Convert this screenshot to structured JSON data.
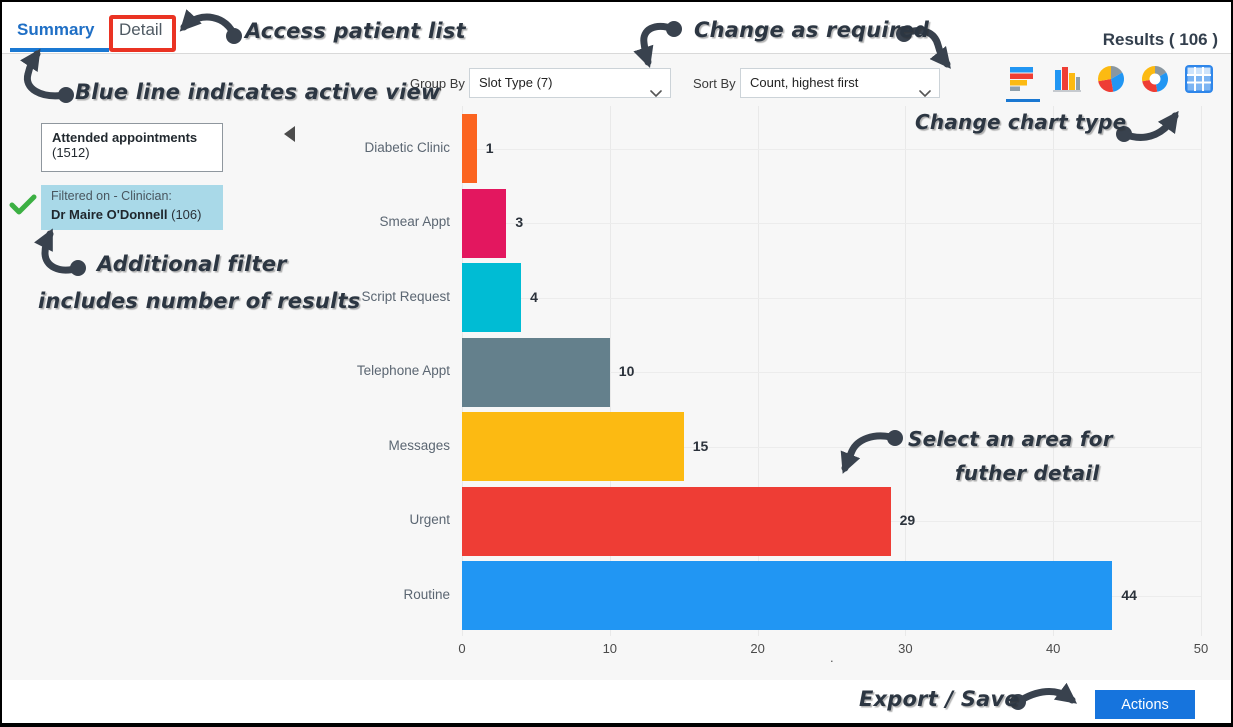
{
  "header": {
    "tabs": [
      {
        "label": "Summary",
        "active": true
      },
      {
        "label": "Detail",
        "active": false
      }
    ],
    "results_label": "Results ( 106 )"
  },
  "controls": {
    "group_by_label": "Group By",
    "group_by_value": "Slot Type (7)",
    "sort_by_label": "Sort By",
    "sort_by_value": "Count, highest first",
    "chart_type_icons": [
      {
        "name": "horizontal-bar-chart-icon",
        "selected": true
      },
      {
        "name": "column-chart-icon",
        "selected": false
      },
      {
        "name": "pie-chart-icon",
        "selected": false
      },
      {
        "name": "donut-chart-icon",
        "selected": false
      },
      {
        "name": "table-icon",
        "selected": false
      }
    ]
  },
  "filter_panel": {
    "base": {
      "title": "Attended appointments",
      "count": "(1512)"
    },
    "filter": {
      "line1": "Filtered on - Clinician:",
      "name": "Dr Maire O'Donnell",
      "count": " (106)"
    },
    "icons": [
      "check-icon",
      "collapse-left-icon"
    ]
  },
  "chart_data": {
    "type": "bar",
    "orientation": "horizontal",
    "categories": [
      "Diabetic Clinic",
      "Smear Appt",
      "Script Request",
      "Telephone Appt",
      "Messages",
      "Urgent",
      "Routine"
    ],
    "values": [
      1,
      3,
      4,
      10,
      15,
      29,
      44
    ],
    "colors": [
      "#fb6420",
      "#e3175f",
      "#00bcd4",
      "#64808c",
      "#fcba12",
      "#ee3d35",
      "#2196f3"
    ],
    "value_labels": true,
    "xlim": [
      0,
      50
    ],
    "xticks": [
      0,
      10,
      20,
      30,
      40,
      50
    ],
    "grid": true,
    "legend": false,
    "title": "",
    "xlabel": ".",
    "ylabel": ""
  },
  "annotations": {
    "access_patient": "Access patient list",
    "blue_line": "Blue line indicates active view",
    "change_required": "Change as required",
    "change_chart_type": "Change chart type",
    "additional_filter_line1": "Additional filter",
    "additional_filter_line2": "includes number of results",
    "select_area_line1": "Select an area for",
    "select_area_line2": "futher detail",
    "export_save": "Export / Save"
  },
  "footer": {
    "actions_label": "Actions"
  },
  "colors": {
    "active_tab": "#1f6fc5",
    "tab_underline": "#1a78d2",
    "actions_button": "#1674dd",
    "annotation_ink": "#39424e",
    "highlight_red": "#ea3323",
    "filter_box_bg": "#a9d9e8",
    "check_green": "#3cb043",
    "main_bg": "#f7f7f7"
  }
}
